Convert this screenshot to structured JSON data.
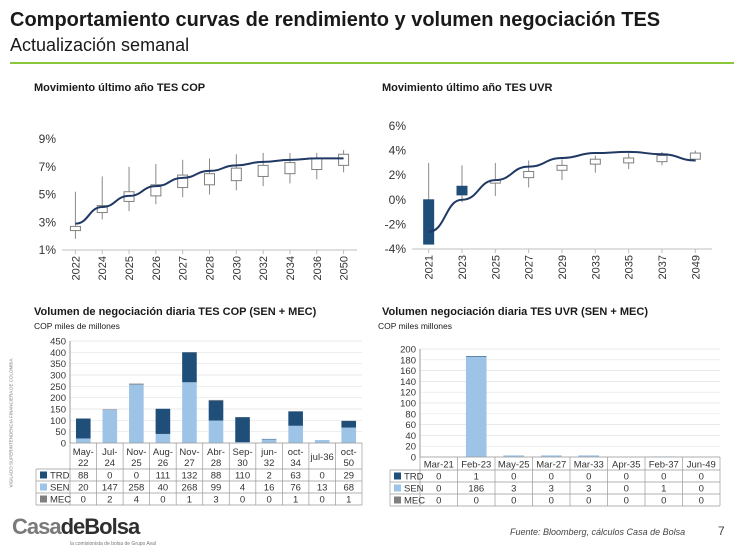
{
  "header": {
    "title": "Comportamiento curvas de rendimiento y volumen negociación TES",
    "subtitle": "Actualización semanal"
  },
  "footer": {
    "source": "Fuente: Bloomberg, cálculos Casa de Bolsa",
    "page": "7",
    "logo_part1": "Casa",
    "logo_part2": "deBolsa",
    "logo_tagline": "la comisionista de bolsa de Grupo Aval",
    "side_text": "VIGILADO SUPERINTENDENCIA FINANCIERA DE COLOMBIA"
  },
  "colors": {
    "dark": "#1f4e79",
    "light": "#9dc3e6",
    "curve": "#1f3864",
    "accent": "#8cc63f"
  },
  "chart_data": [
    {
      "type": "candlestick",
      "title": "Movimiento último año TES COP",
      "categories": [
        "2022",
        "2024",
        "2025",
        "2026",
        "2027",
        "2028",
        "2030",
        "2032",
        "2034",
        "2036",
        "2050"
      ],
      "tick_labels": [
        "1%",
        "3%",
        "5%",
        "7%",
        "9%"
      ],
      "ylim": [
        1,
        9
      ],
      "boxes": [
        {
          "low": 1.8,
          "open": 2.7,
          "close": 2.4,
          "high": 5.2
        },
        {
          "low": 3.2,
          "open": 3.7,
          "close": 4.2,
          "high": 6.3
        },
        {
          "low": 3.8,
          "open": 4.5,
          "close": 5.2,
          "high": 7.0
        },
        {
          "low": 4.3,
          "open": 4.9,
          "close": 5.7,
          "high": 7.2
        },
        {
          "low": 4.8,
          "open": 5.5,
          "close": 6.4,
          "high": 7.5
        },
        {
          "low": 5.0,
          "open": 5.7,
          "close": 6.5,
          "high": 7.6
        },
        {
          "low": 5.3,
          "open": 6.0,
          "close": 6.9,
          "high": 7.9
        },
        {
          "low": 5.6,
          "open": 6.3,
          "close": 7.1,
          "high": 8.0
        },
        {
          "low": 5.8,
          "open": 6.5,
          "close": 7.3,
          "high": 8.0
        },
        {
          "low": 6.1,
          "open": 6.8,
          "close": 7.6,
          "high": 8.0
        },
        {
          "low": 6.6,
          "open": 7.1,
          "close": 7.9,
          "high": 8.2
        }
      ],
      "curve": [
        2.9,
        4.1,
        4.9,
        5.6,
        6.2,
        6.7,
        7.1,
        7.35,
        7.5,
        7.6,
        7.6
      ]
    },
    {
      "type": "candlestick",
      "title": "Movimiento último año TES UVR",
      "categories": [
        "2021",
        "2023",
        "2025",
        "2027",
        "2029",
        "2033",
        "2035",
        "2037",
        "2049"
      ],
      "tick_labels": [
        "-4%",
        "-2%",
        "0%",
        "2%",
        "4%",
        "6%"
      ],
      "ylim": [
        -4,
        6
      ],
      "boxes": [
        {
          "low": -3.6,
          "open": -3.6,
          "close": 0.0,
          "high": 3.0,
          "filled": true
        },
        {
          "low": -0.2,
          "open": 0.4,
          "close": 1.1,
          "high": 2.8,
          "filled": true
        },
        {
          "low": 0.3,
          "open": 1.4,
          "close": 1.6,
          "high": 3.0
        },
        {
          "low": 1.0,
          "open": 1.8,
          "close": 2.3,
          "high": 3.2
        },
        {
          "low": 1.6,
          "open": 2.4,
          "close": 2.8,
          "high": 3.3
        },
        {
          "low": 2.2,
          "open": 2.9,
          "close": 3.3,
          "high": 3.6
        },
        {
          "low": 2.5,
          "open": 3.0,
          "close": 3.4,
          "high": 3.8
        },
        {
          "low": 2.8,
          "open": 3.1,
          "close": 3.6,
          "high": 3.9
        },
        {
          "low": 3.1,
          "open": 3.3,
          "close": 3.8,
          "high": 4.0
        }
      ],
      "curve": [
        -2.6,
        0.0,
        1.6,
        2.7,
        3.4,
        3.8,
        3.9,
        3.7,
        3.2
      ]
    },
    {
      "type": "bar",
      "stacked": true,
      "title": "Volumen de negociación diaria TES COP (SEN + MEC)",
      "subtitle": "COP miles de millones",
      "categories": [
        "May-22",
        "Jul-24",
        "Nov-25",
        "Aug-26",
        "Nov-27",
        "Abr-28",
        "Sep-30",
        "jun-32",
        "oct-34",
        "jul-36",
        "oct-50"
      ],
      "tick_labels": [
        "0",
        "50",
        "100",
        "150",
        "200",
        "250",
        "300",
        "350",
        "400",
        "450"
      ],
      "ylim": [
        0,
        450
      ],
      "series": [
        {
          "name": "TRD",
          "values": [
            88,
            0,
            0,
            111,
            132,
            88,
            110,
            2,
            63,
            0,
            29
          ]
        },
        {
          "name": "SEN",
          "values": [
            20,
            147,
            258,
            40,
            268,
            99,
            4,
            16,
            76,
            13,
            68
          ]
        },
        {
          "name": "MEC",
          "values": [
            0,
            2,
            4,
            0,
            1,
            3,
            0,
            0,
            1,
            0,
            1
          ]
        }
      ]
    },
    {
      "type": "bar",
      "stacked": true,
      "title": "Volumen negociación diaria TES UVR (SEN + MEC)",
      "subtitle": "COP miles millones",
      "categories": [
        "Mar-21",
        "Feb-23",
        "May-25",
        "Mar-27",
        "Mar-33",
        "Apr-35",
        "Feb-37",
        "Jun-49"
      ],
      "tick_labels": [
        "0",
        "20",
        "40",
        "60",
        "80",
        "100",
        "120",
        "140",
        "160",
        "180",
        "200"
      ],
      "ylim": [
        0,
        200
      ],
      "series": [
        {
          "name": "TRD",
          "values": [
            0,
            1,
            0,
            0,
            0,
            0,
            0,
            0
          ]
        },
        {
          "name": "SEN",
          "values": [
            0,
            186,
            3,
            3,
            3,
            0,
            1,
            0
          ]
        },
        {
          "name": "MEC",
          "values": [
            0,
            0,
            0,
            0,
            0,
            0,
            0,
            0
          ]
        }
      ]
    }
  ]
}
